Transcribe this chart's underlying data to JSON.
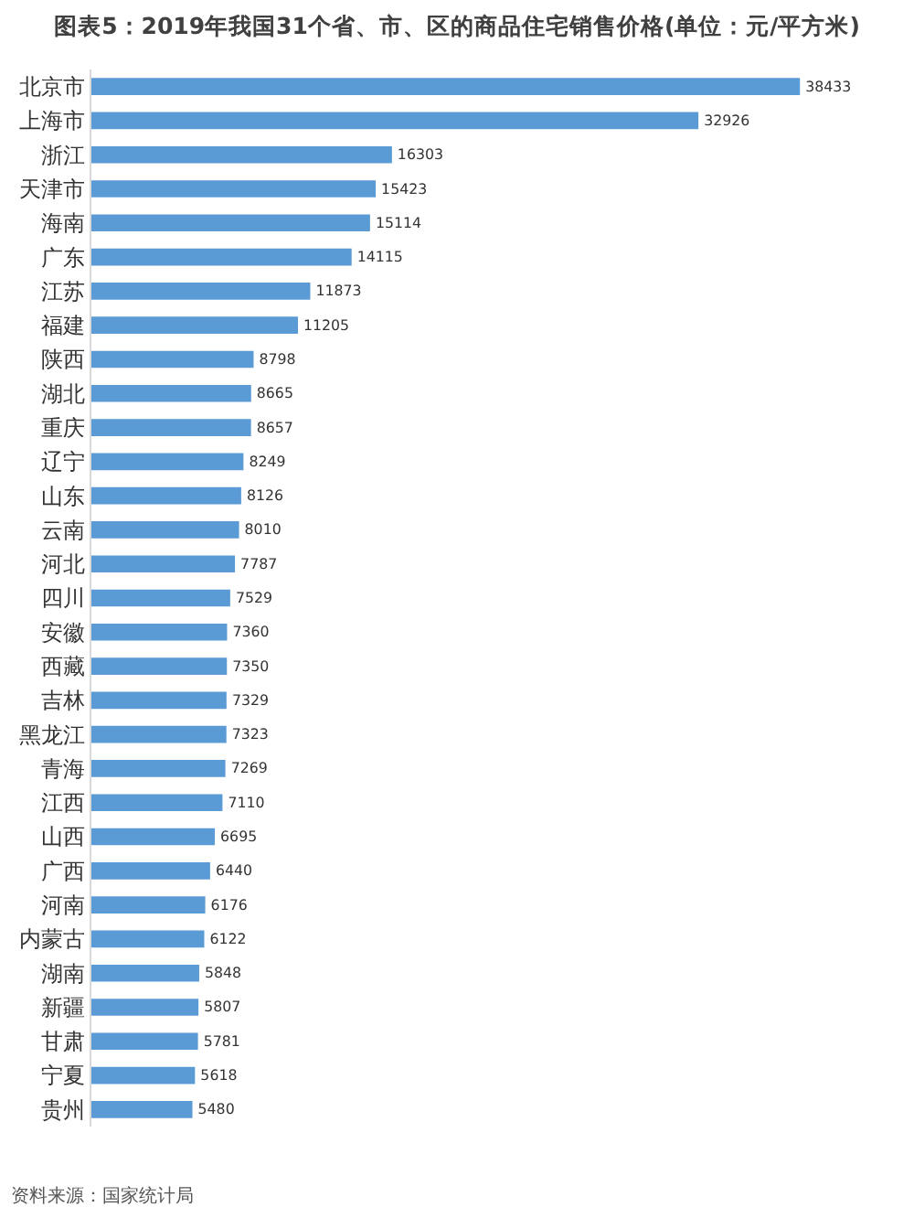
{
  "chart_data": {
    "type": "bar",
    "orientation": "horizontal",
    "title": "图表5：2019年我国31个省、市、区的商品住宅销售价格(单位：元/平方米)",
    "categories": [
      "北京市",
      "上海市",
      "浙江",
      "天津市",
      "海南",
      "广东",
      "江苏",
      "福建",
      "陕西",
      "湖北",
      "重庆",
      "辽宁",
      "山东",
      "云南",
      "河北",
      "四川",
      "安徽",
      "西藏",
      "吉林",
      "黑龙江",
      "青海",
      "江西",
      "山西",
      "广西",
      "河南",
      "内蒙古",
      "湖南",
      "新疆",
      "甘肃",
      "宁夏",
      "贵州"
    ],
    "values": [
      38433,
      32926,
      16303,
      15423,
      15114,
      14115,
      11873,
      11205,
      8798,
      8665,
      8657,
      8249,
      8126,
      8010,
      7787,
      7529,
      7360,
      7350,
      7329,
      7323,
      7269,
      7110,
      6695,
      6440,
      6176,
      6122,
      5848,
      5807,
      5781,
      5618,
      5480
    ],
    "color": "#5b9bd5",
    "data_labels": true,
    "tick_labels": "y",
    "annotations": [
      "资料来源：国家统计局"
    ]
  }
}
